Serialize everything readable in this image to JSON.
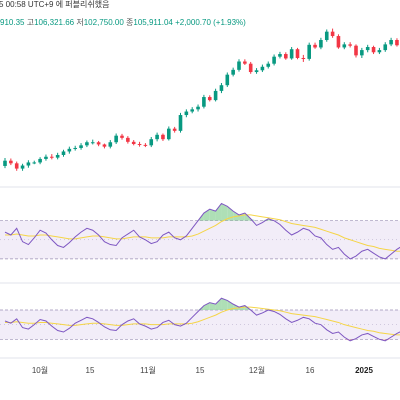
{
  "header": {
    "timestamp": "5 00:58 UTC+9 에 퍼블리쉬했음",
    "stats_prefix": "910.35",
    "high_label": "고",
    "high_value": "106,321.66",
    "low_label": "저",
    "low_value": "102,750.00",
    "close_label": "종",
    "close_value": "105,911.04",
    "change_text": "+2,000.70 (+1.93%)"
  },
  "xaxis": {
    "ticks": [
      {
        "label": "10월",
        "bold": false
      },
      {
        "label": "15",
        "bold": false
      },
      {
        "label": "11월",
        "bold": false
      },
      {
        "label": "15",
        "bold": false
      },
      {
        "label": "12월",
        "bold": false
      },
      {
        "label": "16",
        "bold": false
      },
      {
        "label": "2025",
        "bold": true
      }
    ]
  },
  "colors": {
    "up": "#089981",
    "down": "#f23645",
    "osc_line": "#7e57c2",
    "osc_ma": "#f5d547",
    "osc_band": "#ede7f6",
    "osc_bound": "#9a8fb5",
    "overbought_fill": "#9ad7a4",
    "oversold_fill": "#f4a3a8"
  },
  "chart_data": {
    "type": "candlestick",
    "price": {
      "open": [
        75.2,
        76.4,
        75.8,
        74.6,
        75.3,
        76.0,
        76.0,
        76.8,
        77.3,
        77.1,
        77.7,
        78.5,
        79.1,
        79.3,
        79.9,
        80.6,
        80.6,
        80.1,
        79.6,
        80.6,
        82.1,
        81.6,
        80.7,
        80.2,
        80.0,
        79.9,
        81.3,
        82.3,
        81.3,
        83.7,
        83.2,
        86.8,
        87.6,
        88.1,
        88.7,
        90.9,
        90.2,
        92.3,
        93.6,
        96.0,
        97.1,
        99.0,
        98.5,
        96.6,
        97.0,
        97.8,
        98.5,
        100.1,
        100.7,
        99.7,
        101.8,
        99.8,
        99.6,
        102.8,
        102.2,
        103.9,
        105.8,
        104.8,
        102.2,
        102.9,
        102.6,
        100.4,
        101.6,
        102.3,
        101.1,
        101.6,
        102.9,
        103.9,
        102.7,
        103.9
      ],
      "close": [
        76.4,
        75.8,
        74.6,
        75.3,
        76.0,
        76.0,
        76.8,
        77.3,
        77.1,
        77.7,
        78.5,
        79.1,
        79.3,
        79.9,
        80.6,
        80.6,
        80.1,
        79.6,
        80.6,
        82.1,
        81.6,
        80.7,
        80.2,
        80.0,
        79.9,
        81.3,
        82.3,
        81.3,
        83.7,
        83.2,
        86.8,
        87.6,
        88.1,
        88.7,
        90.9,
        90.2,
        92.3,
        93.6,
        96.0,
        97.1,
        99.0,
        98.5,
        96.6,
        97.0,
        97.8,
        98.5,
        100.1,
        100.7,
        99.7,
        101.8,
        99.8,
        99.6,
        102.8,
        102.2,
        103.9,
        105.8,
        104.8,
        102.2,
        102.9,
        102.6,
        100.4,
        101.6,
        102.3,
        101.1,
        101.6,
        102.9,
        103.9,
        102.7,
        103.9,
        104.7
      ],
      "high": [
        77.0,
        76.9,
        76.2,
        75.7,
        76.5,
        76.4,
        77.2,
        77.8,
        77.9,
        78.2,
        78.9,
        79.6,
        79.8,
        80.4,
        81.0,
        81.2,
        80.9,
        80.3,
        81.1,
        82.6,
        82.5,
        82.0,
        81.1,
        80.7,
        80.4,
        81.8,
        82.8,
        82.6,
        84.2,
        84.1,
        87.3,
        88.1,
        88.6,
        89.2,
        91.4,
        91.3,
        92.8,
        94.1,
        96.5,
        97.6,
        99.5,
        99.5,
        98.9,
        97.5,
        98.3,
        99.0,
        100.6,
        101.2,
        101.1,
        102.3,
        102.1,
        100.5,
        103.3,
        103.3,
        104.4,
        106.3,
        106.5,
        105.2,
        103.4,
        103.4,
        102.9,
        102.1,
        102.8,
        102.6,
        102.1,
        103.4,
        104.4,
        104.3,
        104.4,
        105.2
      ],
      "low": [
        74.7,
        75.4,
        74.1,
        74.1,
        74.8,
        75.6,
        75.6,
        76.4,
        76.7,
        76.7,
        77.3,
        78.0,
        78.7,
        78.9,
        79.5,
        80.1,
        79.7,
        79.2,
        79.2,
        80.2,
        81.2,
        80.3,
        79.9,
        79.6,
        79.5,
        79.5,
        80.8,
        80.9,
        81.0,
        82.8,
        82.8,
        86.3,
        87.2,
        87.6,
        88.3,
        89.9,
        89.9,
        91.8,
        93.2,
        95.6,
        96.7,
        98.2,
        96.2,
        96.2,
        96.6,
        97.4,
        98.1,
        99.7,
        99.4,
        99.4,
        99.5,
        98.9,
        99.2,
        101.9,
        101.8,
        103.5,
        104.4,
        101.9,
        101.8,
        102.2,
        99.9,
        99.8,
        101.1,
        100.7,
        100.7,
        101.2,
        102.5,
        102.4,
        102.4,
        103.5
      ],
      "ylim": [
        72,
        108
      ]
    },
    "oscillator_1": {
      "values": [
        58,
        55,
        62,
        48,
        45,
        52,
        60,
        57,
        50,
        44,
        42,
        47,
        53,
        58,
        62,
        60,
        55,
        48,
        45,
        44,
        52,
        56,
        60,
        53,
        50,
        46,
        48,
        55,
        58,
        52,
        50,
        54,
        62,
        70,
        78,
        82,
        80,
        88,
        85,
        80,
        76,
        78,
        72,
        65,
        68,
        72,
        70,
        66,
        60,
        55,
        58,
        62,
        60,
        54,
        52,
        45,
        40,
        42,
        35,
        30,
        33,
        38,
        40,
        36,
        32,
        30,
        35,
        40,
        44,
        42
      ],
      "signal": [
        55,
        55,
        56,
        55,
        54,
        54,
        55,
        55,
        54,
        53,
        52,
        51,
        51,
        52,
        53,
        54,
        54,
        53,
        52,
        51,
        51,
        52,
        53,
        53,
        53,
        52,
        52,
        52,
        53,
        53,
        53,
        53,
        54,
        56,
        59,
        62,
        65,
        69,
        72,
        74,
        75,
        76,
        76,
        75,
        74,
        73,
        72,
        71,
        69,
        67,
        66,
        65,
        64,
        63,
        61,
        59,
        57,
        55,
        52,
        50,
        48,
        46,
        44,
        43,
        41,
        40,
        39,
        38,
        38,
        39
      ],
      "bands": [
        30,
        70
      ],
      "ylim": [
        10,
        100
      ]
    },
    "oscillator_2": {
      "values": [
        55,
        52,
        58,
        46,
        44,
        50,
        57,
        55,
        48,
        42,
        40,
        45,
        52,
        56,
        60,
        58,
        53,
        47,
        43,
        42,
        50,
        55,
        58,
        51,
        48,
        44,
        46,
        53,
        56,
        50,
        48,
        52,
        60,
        68,
        76,
        80,
        78,
        86,
        83,
        78,
        74,
        76,
        70,
        63,
        66,
        70,
        68,
        64,
        58,
        53,
        56,
        60,
        58,
        52,
        50,
        43,
        38,
        40,
        33,
        28,
        31,
        36,
        38,
        34,
        30,
        28,
        33,
        38,
        42,
        40
      ],
      "signal": [
        53,
        53,
        54,
        53,
        52,
        52,
        53,
        53,
        52,
        51,
        50,
        49,
        49,
        50,
        51,
        52,
        52,
        51,
        50,
        49,
        49,
        50,
        51,
        51,
        51,
        50,
        50,
        50,
        51,
        51,
        51,
        51,
        52,
        54,
        57,
        60,
        63,
        67,
        70,
        72,
        73,
        74,
        74,
        73,
        72,
        71,
        70,
        69,
        67,
        65,
        64,
        63,
        62,
        61,
        59,
        57,
        55,
        53,
        50,
        48,
        46,
        44,
        42,
        41,
        39,
        38,
        37,
        36,
        36,
        37
      ],
      "bands": [
        30,
        70
      ],
      "ylim": [
        10,
        100
      ]
    }
  }
}
